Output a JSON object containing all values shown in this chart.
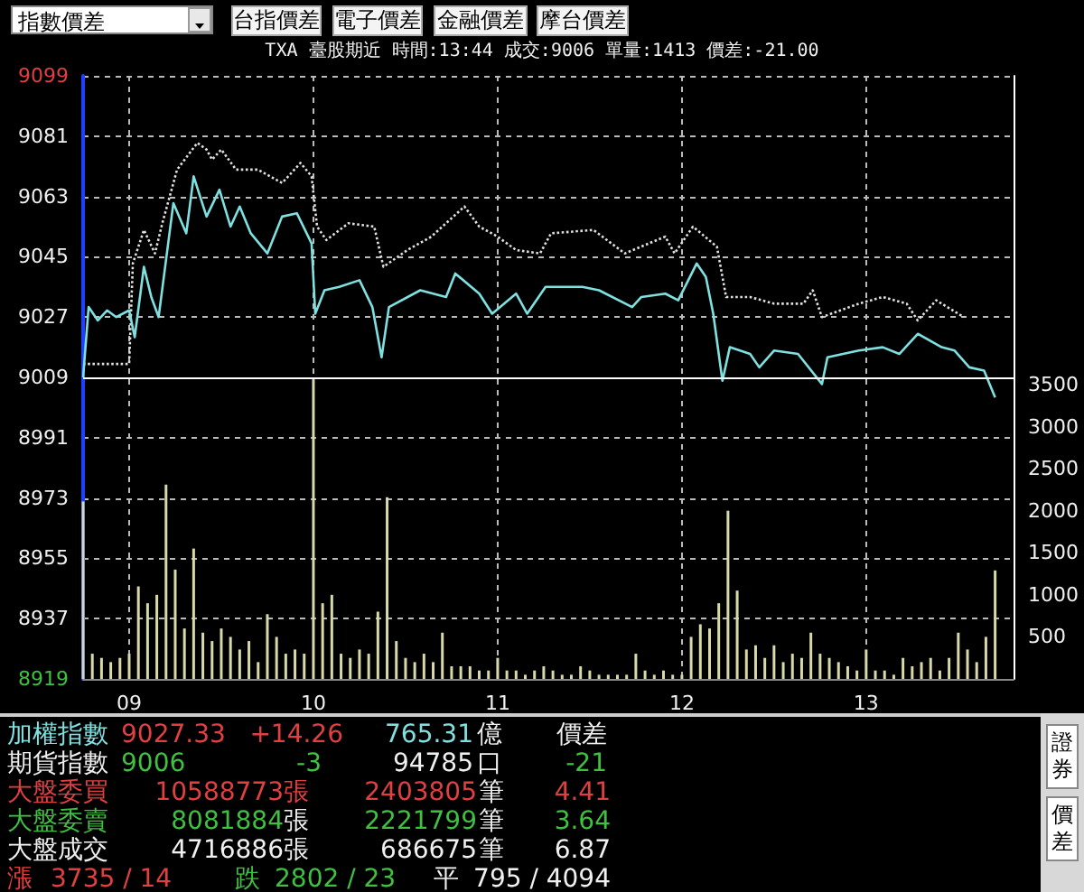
{
  "chart_data": {
    "type": "line",
    "title": "TXA  臺股期近 時間:13:44 成交:9006 單量:1413 價差:-21.00",
    "annotations": [
      "指數價差",
      "台指價差",
      "電子價差",
      "金融價差",
      "摩台價差",
      "加權指數",
      "9027.33",
      "+14.26",
      "765.31",
      "億",
      "價差",
      "期貨指數",
      "9006",
      "-3",
      "94785",
      "口",
      "-21",
      "大盤委買",
      "10588773",
      "張",
      "2403805",
      "筆",
      "4.41",
      "大盤委賣",
      "8081884",
      "張",
      "2221799",
      "筆",
      "3.64",
      "大盤成交",
      "4716886",
      "張",
      "686675",
      "筆",
      "6.87",
      "漲",
      "3735 / 14",
      "跌",
      "2802 / 23",
      "平",
      "795 / 4094",
      "證券",
      "價差"
    ],
    "xlim": [
      8.75,
      13.8
    ],
    "xticks": [
      {
        "value": 9,
        "label": "09"
      },
      {
        "value": 10,
        "label": "10"
      },
      {
        "value": 11,
        "label": "11"
      },
      {
        "value": 12,
        "label": "12"
      },
      {
        "value": 13,
        "label": "13"
      }
    ],
    "ylim": [
      8919,
      9099
    ],
    "yticks": [
      8919,
      8937,
      8955,
      8973,
      8991,
      9009,
      9027,
      9045,
      9063,
      9081,
      9099
    ],
    "y2lim": [
      0,
      7170
    ],
    "y2ticks": [
      500,
      1000,
      1500,
      2000,
      2500,
      3000,
      3500
    ],
    "grid": true,
    "marker": "none",
    "ref_lines": [
      {
        "axis": "y",
        "value": 9009,
        "color": "#ffffff",
        "line_style": "solid"
      }
    ],
    "series": [
      {
        "type": "bar",
        "axis": "y2",
        "color": "#d8d8a8",
        "x": [
          8.75,
          8.8,
          8.85,
          8.9,
          8.95,
          9,
          9.05,
          9.1,
          9.15,
          9.2,
          9.25,
          9.3,
          9.35,
          9.4,
          9.45,
          9.5,
          9.55,
          9.6,
          9.65,
          9.7,
          9.75,
          9.8,
          9.85,
          9.9,
          9.95,
          10,
          10.05,
          10.1,
          10.15,
          10.2,
          10.25,
          10.3,
          10.35,
          10.4,
          10.45,
          10.5,
          10.55,
          10.6,
          10.65,
          10.7,
          10.75,
          10.8,
          10.85,
          10.9,
          10.95,
          11,
          11.05,
          11.1,
          11.15,
          11.2,
          11.25,
          11.3,
          11.35,
          11.4,
          11.45,
          11.5,
          11.55,
          11.6,
          11.65,
          11.7,
          11.75,
          11.8,
          11.85,
          11.9,
          11.95,
          12,
          12.05,
          12.1,
          12.15,
          12.2,
          12.25,
          12.3,
          12.35,
          12.4,
          12.45,
          12.5,
          12.55,
          12.6,
          12.65,
          12.7,
          12.75,
          12.8,
          12.85,
          12.9,
          12.95,
          13,
          13.05,
          13.1,
          13.15,
          13.2,
          13.25,
          13.3,
          13.35,
          13.4,
          13.45,
          13.5,
          13.55,
          13.6,
          13.65,
          13.7
        ],
        "values": [
          2110,
          300,
          250,
          200,
          250,
          300,
          1100,
          900,
          1000,
          2310,
          1300,
          600,
          1550,
          550,
          450,
          600,
          500,
          350,
          450,
          200,
          770,
          500,
          300,
          350,
          300,
          3560,
          900,
          1000,
          300,
          250,
          350,
          300,
          800,
          2160,
          450,
          250,
          200,
          300,
          200,
          550,
          150,
          150,
          150,
          100,
          100,
          250,
          100,
          100,
          50,
          100,
          150,
          100,
          50,
          50,
          150,
          100,
          50,
          50,
          50,
          50,
          300,
          100,
          50,
          100,
          50,
          50,
          500,
          650,
          600,
          900,
          2000,
          1050,
          350,
          400,
          250,
          400,
          200,
          300,
          250,
          550,
          300,
          250,
          200,
          150,
          100,
          350,
          100,
          100,
          50,
          250,
          150,
          200,
          250,
          100,
          250,
          550,
          350,
          200,
          500,
          1290
        ]
      },
      {
        "color": "#e0e0e0",
        "line_style": "dotted",
        "x": [
          8.75,
          9.0,
          9.02,
          9.08,
          9.14,
          9.18,
          9.26,
          9.37,
          9.42,
          9.45,
          9.5,
          9.58,
          9.7,
          9.83,
          9.93,
          9.99,
          10.02,
          10.07,
          10.19,
          10.33,
          10.38,
          10.51,
          10.64,
          10.82,
          10.9,
          11.0,
          11.1,
          11.23,
          11.29,
          11.52,
          11.69,
          11.91,
          11.96,
          12.06,
          12.19,
          12.24,
          12.37,
          12.5,
          12.66,
          12.71,
          12.76,
          12.96,
          13.09,
          13.22,
          13.28,
          13.38,
          13.53
        ],
        "values": [
          9013,
          9013,
          9043,
          9053,
          9046,
          9055,
          9071,
          9079,
          9077,
          9074,
          9077,
          9071,
          9071,
          9067,
          9073,
          9069,
          9054,
          9050,
          9055,
          9054,
          9042,
          9047,
          9051,
          9060,
          9054,
          9051,
          9047,
          9046,
          9052,
          9053,
          9046,
          9051,
          9046,
          9054,
          9048,
          9033,
          9033,
          9031,
          9031,
          9035,
          9027,
          9031,
          9033,
          9031,
          9026,
          9032,
          9027
        ]
      },
      {
        "color": "#7fe0e0",
        "line_style": "solid",
        "x": [
          8.75,
          8.78,
          8.83,
          8.88,
          8.93,
          9.0,
          9.03,
          9.08,
          9.12,
          9.16,
          9.24,
          9.31,
          9.35,
          9.42,
          9.49,
          9.55,
          9.6,
          9.66,
          9.75,
          9.83,
          9.91,
          9.99,
          10.01,
          10.06,
          10.14,
          10.25,
          10.32,
          10.37,
          10.41,
          10.58,
          10.72,
          10.77,
          10.9,
          10.97,
          11.1,
          11.16,
          11.26,
          11.46,
          11.55,
          11.73,
          11.78,
          11.91,
          11.98,
          12.08,
          12.13,
          12.17,
          12.22,
          12.26,
          12.37,
          12.42,
          12.5,
          12.63,
          12.76,
          12.79,
          12.96,
          13.09,
          13.18,
          13.28,
          13.41,
          13.48,
          13.56,
          13.64,
          13.7
        ],
        "values": [
          9009,
          9030,
          9026,
          9029,
          9027,
          9029,
          9021,
          9042,
          9033,
          9027,
          9061,
          9052,
          9069,
          9057,
          9065,
          9054,
          9060,
          9052,
          9046,
          9057,
          9058,
          9049,
          9028,
          9035,
          9036,
          9038,
          9030,
          9015,
          9030,
          9035,
          9033,
          9040,
          9034,
          9028,
          9034,
          9028,
          9036,
          9036,
          9035,
          9030,
          9033,
          9034,
          9032,
          9043,
          9039,
          9028,
          9008,
          9018,
          9016,
          9012,
          9017,
          9016,
          9007,
          9015,
          9017,
          9018,
          9016,
          9022,
          9018,
          9017,
          9012,
          9011,
          9003
        ]
      }
    ]
  }
}
